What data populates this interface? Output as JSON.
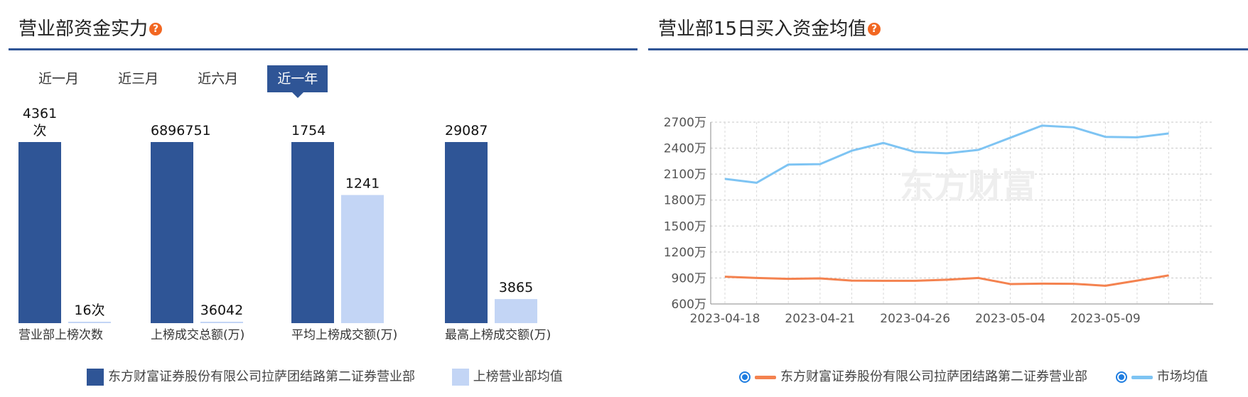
{
  "left_panel": {
    "title": "营业部资金实力",
    "help": "?",
    "tabs": [
      {
        "label": "近一月",
        "active": false
      },
      {
        "label": "近三月",
        "active": false
      },
      {
        "label": "近六月",
        "active": false
      },
      {
        "label": "近一年",
        "active": true
      }
    ]
  },
  "right_panel": {
    "title": "营业部15日买入资金均值",
    "help": "?",
    "watermark": "东方财富"
  },
  "chart_data": [
    {
      "type": "bar",
      "categories": [
        "营业部上榜次数",
        "上榜成交总额(万)",
        "平均上榜成交额(万)",
        "最高上榜成交额(万)"
      ],
      "series": [
        {
          "name": "东方财富证券股份有限公司拉萨团结路第二证券营业部",
          "color": "#2f5596",
          "values": [
            4361,
            6896751,
            1754,
            29087
          ],
          "labels": [
            "4361\n次",
            "6896751",
            "1754",
            "29087"
          ]
        },
        {
          "name": "上榜营业部均值",
          "color": "#c3d5f5",
          "values": [
            16,
            36042,
            1241,
            3865
          ],
          "labels": [
            "16次",
            "36042",
            "1241",
            "3865"
          ]
        }
      ],
      "legend_position": "bottom"
    },
    {
      "type": "line",
      "x": [
        "2023-04-18",
        "2023-04-19",
        "2023-04-20",
        "2023-04-21",
        "2023-04-24",
        "2023-04-25",
        "2023-04-26",
        "2023-04-27",
        "2023-04-28",
        "2023-05-04",
        "2023-05-05",
        "2023-05-08",
        "2023-05-09",
        "2023-05-10",
        "2023-05-11",
        "2023-05-12"
      ],
      "x_tick_labels": [
        "2023-04-18",
        "2023-04-21",
        "2023-04-26",
        "2023-05-04",
        "2023-05-09"
      ],
      "y_tick_labels": [
        "600万",
        "900万",
        "1200万",
        "1500万",
        "1800万",
        "2100万",
        "2400万",
        "2700万"
      ],
      "ylim": [
        600,
        2700
      ],
      "grid": true,
      "series": [
        {
          "name": "东方财富证券股份有限公司拉萨团结路第二证券营业部",
          "color": "#f4824f",
          "values": [
            915,
            900,
            890,
            895,
            870,
            868,
            868,
            880,
            900,
            830,
            835,
            833,
            810,
            870,
            930,
            null
          ]
        },
        {
          "name": "市场均值",
          "color": "#7ec4f3",
          "values": [
            2045,
            2000,
            2210,
            2215,
            2370,
            2460,
            2355,
            2340,
            2380,
            2520,
            2660,
            2640,
            2530,
            2525,
            2570,
            null
          ]
        }
      ],
      "legend_position": "bottom"
    }
  ]
}
